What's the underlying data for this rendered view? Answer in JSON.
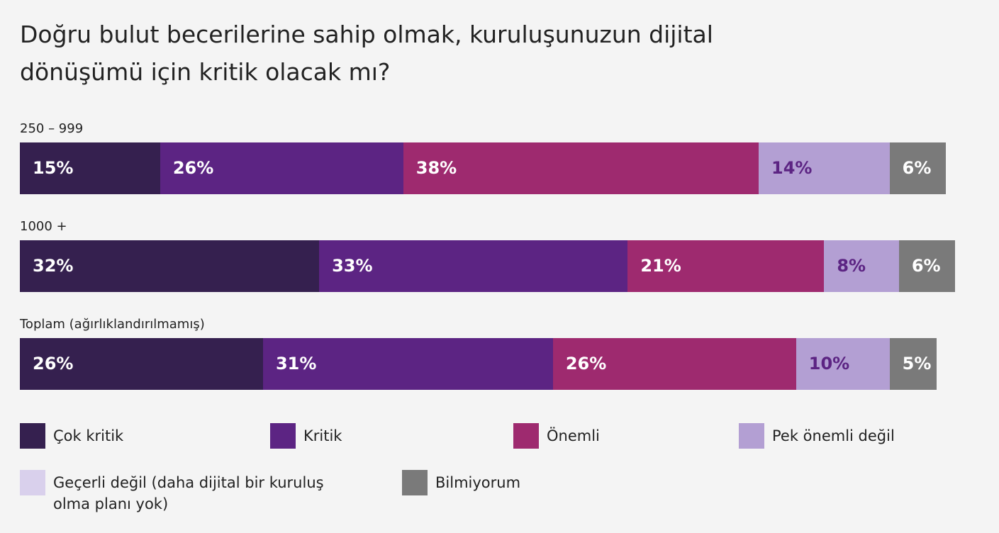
{
  "chart_data": {
    "type": "stacked-bar-horizontal",
    "title": "Doğru bulut becerilerine sahip olmak, kuruluşunuzun dijital dönüşümü için kritik olacak mı?",
    "categories": [
      "250 – 999",
      "1000 +",
      "Toplam (ağırlıklandırılmamış)"
    ],
    "series": [
      {
        "name": "Çok kritik",
        "color": "#35204f",
        "values": [
          15,
          32,
          26
        ],
        "value_labels": [
          "15%",
          "32%",
          "26%"
        ]
      },
      {
        "name": "Kritik",
        "color": "#5c2483",
        "values": [
          26,
          33,
          31
        ],
        "value_labels": [
          "26%",
          "33%",
          "31%"
        ]
      },
      {
        "name": "Önemli",
        "color": "#9e2a6f",
        "values": [
          38,
          21,
          26
        ],
        "value_labels": [
          "38%",
          "21%",
          "26%"
        ]
      },
      {
        "name": "Pek önemli değil",
        "color": "#b39fd3",
        "values": [
          14,
          8,
          10
        ],
        "value_labels": [
          "14%",
          "8%",
          "10%"
        ]
      },
      {
        "name": "Geçerli değil (daha dijital bir kuruluş olma planı yok)",
        "color": "#d9d0ec",
        "values": [
          null,
          null,
          null
        ],
        "value_labels": [
          null,
          null,
          null
        ]
      },
      {
        "name": "Bilmiyorum",
        "color": "#7a7a7a",
        "values": [
          6,
          6,
          5
        ],
        "value_labels": [
          "6%",
          "6%",
          "5%"
        ]
      }
    ],
    "xlim": [
      0,
      100
    ]
  }
}
